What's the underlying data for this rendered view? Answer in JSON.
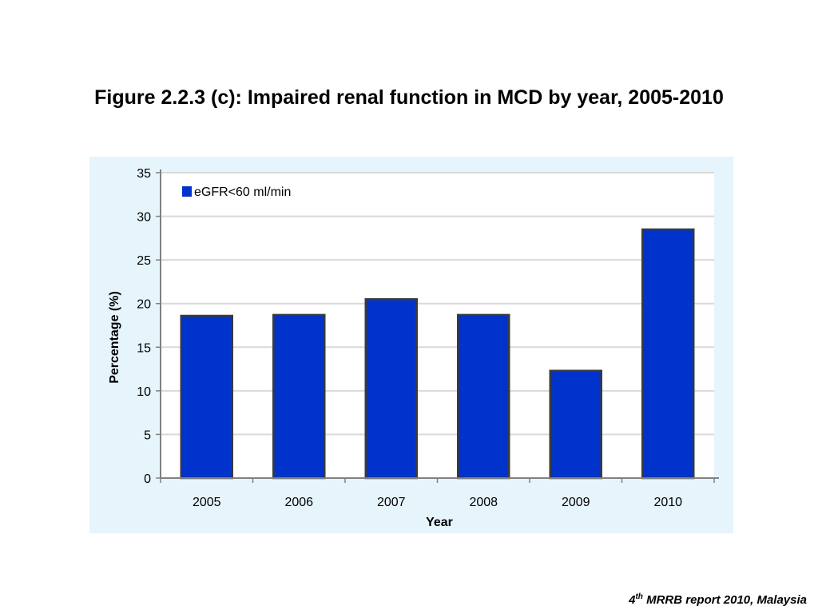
{
  "slide": {
    "title": "Figure 2.2.3 (c): Impaired renal function in MCD by year, 2005-2010",
    "footnote": {
      "number": "4",
      "superscript": "th",
      "text": " MRRB report 2010, Malaysia"
    }
  },
  "colors": {
    "bar": "#0033cc",
    "bar_border": "#3a3a3a",
    "panel": "#e6f4fc",
    "plot": "#ffffff",
    "grid": "#d9d9d9"
  },
  "chart_data": {
    "type": "bar",
    "title": "",
    "xlabel": "Year",
    "ylabel": "Percentage (%)",
    "categories": [
      "2005",
      "2006",
      "2007",
      "2008",
      "2009",
      "2010"
    ],
    "series": [
      {
        "name": "eGFR<60 ml/min",
        "values": [
          18.6,
          18.7,
          20.5,
          18.7,
          12.3,
          28.5
        ]
      }
    ],
    "ylim": [
      0,
      35
    ],
    "yticks": [
      0,
      5,
      10,
      15,
      20,
      25,
      30,
      35
    ],
    "grid": true,
    "legend_position": "top-left"
  }
}
